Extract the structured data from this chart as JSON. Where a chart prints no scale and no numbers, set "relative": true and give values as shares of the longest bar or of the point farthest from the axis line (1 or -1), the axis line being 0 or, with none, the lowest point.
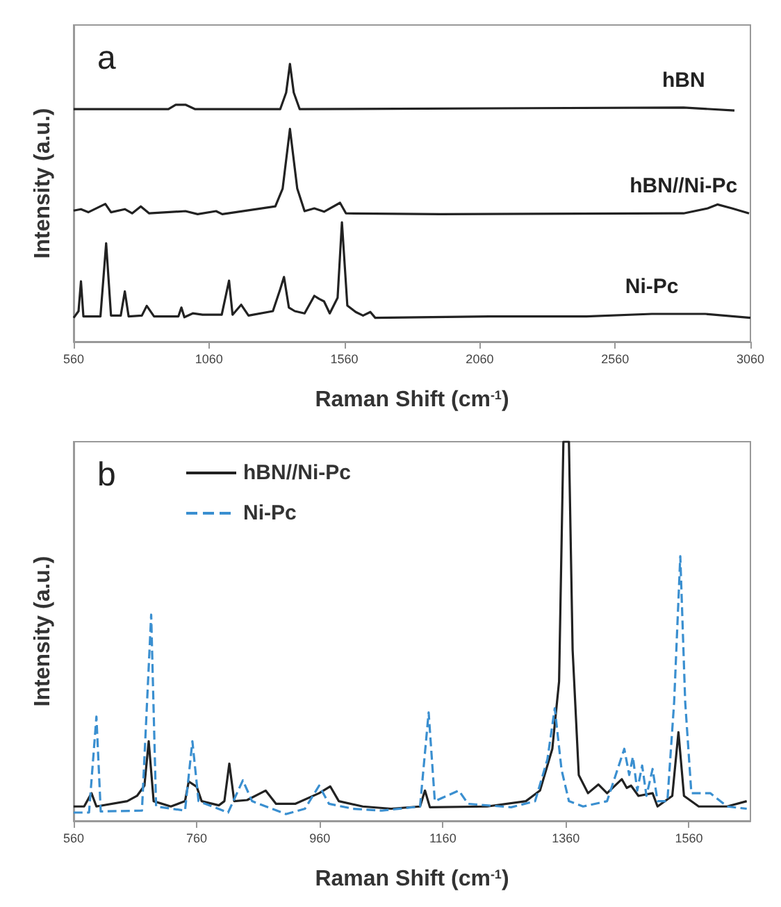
{
  "chart_data": [
    {
      "type": "line",
      "relative": true,
      "xlabel": "Raman Shift (cm$^{-1}$)",
      "ylabel": "Intensity (a.u.)",
      "annotations": [
        "a"
      ],
      "xlim": [
        560,
        3060
      ],
      "xticks": [
        560,
        1060,
        1560,
        2060,
        2560,
        3060
      ],
      "grid": false,
      "legend": false,
      "marker": "none",
      "line_style": "solid",
      "series": [
        {
          "name": "hBN",
          "color": "#222222",
          "x": [
            560,
            910,
            937,
            973,
            1009,
            1323,
            1345,
            1359,
            1373,
            1395,
            2813,
            3001
          ],
          "values": [
            0.837,
            0.837,
            0.853,
            0.853,
            0.837,
            0.837,
            0.897,
            1,
            0.897,
            0.837,
            0.843,
            0.832
          ]
        },
        {
          "name": "hBN//Ni-Pc",
          "color": "#222222",
          "x": [
            560,
            587,
            614,
            677,
            698,
            749,
            776,
            808,
            839,
            973,
            1018,
            1086,
            1109,
            1305,
            1332,
            1359,
            1386,
            1413,
            1449,
            1485,
            1544,
            1566,
            1915,
            2813,
            2902,
            2938,
            2992,
            3055
          ],
          "values": [
            0.472,
            0.477,
            0.466,
            0.496,
            0.466,
            0.477,
            0.462,
            0.487,
            0.462,
            0.47,
            0.459,
            0.47,
            0.459,
            0.487,
            0.551,
            0.766,
            0.551,
            0.47,
            0.48,
            0.468,
            0.5,
            0.462,
            0.459,
            0.462,
            0.48,
            0.494,
            0.48,
            0.462
          ]
        },
        {
          "name": "Ni-Pc",
          "color": "#222222",
          "x": [
            560,
            578,
            587,
            596,
            659,
            680,
            698,
            734,
            749,
            763,
            812,
            830,
            857,
            947,
            958,
            969,
            1000,
            1036,
            1107,
            1134,
            1147,
            1179,
            1206,
            1296,
            1323,
            1337,
            1355,
            1377,
            1413,
            1449,
            1467,
            1485,
            1506,
            1535,
            1551,
            1571,
            1602,
            1629,
            1656,
            1674,
            2095,
            2454,
            2696,
            2893,
            3060
          ],
          "values": [
            0.086,
            0.11,
            0.217,
            0.091,
            0.091,
            0.354,
            0.094,
            0.094,
            0.181,
            0.091,
            0.094,
            0.129,
            0.091,
            0.091,
            0.123,
            0.088,
            0.102,
            0.097,
            0.097,
            0.22,
            0.097,
            0.133,
            0.094,
            0.11,
            0.189,
            0.233,
            0.123,
            0.11,
            0.102,
            0.165,
            0.154,
            0.145,
            0.102,
            0.158,
            0.43,
            0.13,
            0.107,
            0.094,
            0.107,
            0.086,
            0.091,
            0.091,
            0.1,
            0.1,
            0.086
          ]
        }
      ]
    },
    {
      "type": "line",
      "relative": true,
      "xlabel": "Raman Shift (cm$^{-1}$)",
      "ylabel": "Intensity (a.u.)",
      "annotations": [
        "b"
      ],
      "xlim": [
        560,
        1660
      ],
      "xticks": [
        560,
        760,
        960,
        1160,
        1360,
        1560
      ],
      "grid": false,
      "legend": "top left",
      "marker": "none",
      "series": [
        {
          "name": "hBN//Ni-Pc",
          "color": "#222222",
          "line_style": "solid",
          "x": [
            560,
            577,
            589,
            597,
            647,
            663,
            675,
            682,
            690,
            718,
            741,
            747,
            760,
            768,
            796,
            805,
            813,
            821,
            842,
            872,
            889,
            920,
            959,
            977,
            991,
            1030,
            1076,
            1123,
            1131,
            1139,
            1232,
            1295,
            1318,
            1338,
            1349,
            1356,
            1365,
            1371,
            1381,
            1396,
            1413,
            1427,
            1451,
            1459,
            1466,
            1478,
            1501,
            1509,
            1533,
            1543,
            1552,
            1576,
            1622,
            1654
          ],
          "values": [
            0.038,
            0.038,
            0.073,
            0.038,
            0.052,
            0.066,
            0.093,
            0.21,
            0.052,
            0.038,
            0.052,
            0.104,
            0.09,
            0.052,
            0.041,
            0.052,
            0.151,
            0.052,
            0.055,
            0.08,
            0.045,
            0.045,
            0.073,
            0.091,
            0.052,
            0.038,
            0.032,
            0.038,
            0.08,
            0.036,
            0.038,
            0.052,
            0.08,
            0.19,
            0.368,
            1,
            1,
            0.451,
            0.121,
            0.073,
            0.096,
            0.073,
            0.11,
            0.087,
            0.093,
            0.066,
            0.073,
            0.038,
            0.066,
            0.234,
            0.066,
            0.038,
            0.038,
            0.052
          ]
        },
        {
          "name": "Ni-Pc",
          "color": "#3a8fd0",
          "line_style": "dashed",
          "x": [
            560,
            585,
            597,
            604,
            671,
            686,
            694,
            741,
            753,
            763,
            811,
            835,
            850,
            905,
            936,
            959,
            975,
            1014,
            1061,
            1123,
            1137,
            1147,
            1186,
            1201,
            1271,
            1310,
            1330,
            1342,
            1353,
            1365,
            1388,
            1427,
            1455,
            1463,
            1469,
            1476,
            1484,
            1491,
            1501,
            1509,
            1525,
            1536,
            1546,
            1554,
            1564,
            1595,
            1622,
            1654
          ],
          "values": [
            0.022,
            0.022,
            0.275,
            0.025,
            0.027,
            0.544,
            0.038,
            0.027,
            0.21,
            0.052,
            0.022,
            0.107,
            0.052,
            0.018,
            0.032,
            0.093,
            0.045,
            0.032,
            0.027,
            0.038,
            0.286,
            0.052,
            0.08,
            0.045,
            0.036,
            0.052,
            0.162,
            0.297,
            0.135,
            0.052,
            0.038,
            0.052,
            0.19,
            0.121,
            0.169,
            0.08,
            0.146,
            0.066,
            0.137,
            0.052,
            0.052,
            0.313,
            0.698,
            0.313,
            0.073,
            0.073,
            0.038,
            0.032
          ]
        }
      ]
    }
  ]
}
